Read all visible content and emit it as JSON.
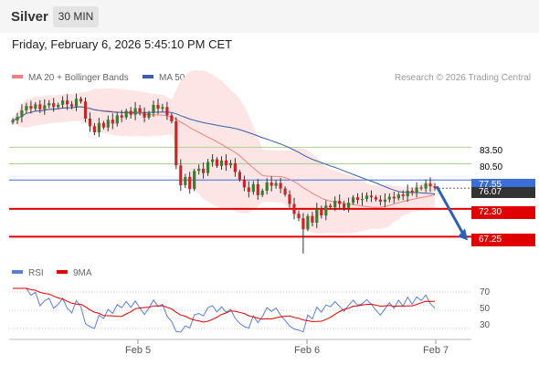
{
  "header": {
    "symbol": "Silver",
    "timeframe": "30 MIN"
  },
  "datetime": "Friday, February 6, 2026 5:45:10 PM CET",
  "legend": {
    "main": [
      {
        "label": "MA 20 + Bollinger Bands",
        "color": "#f08080"
      },
      {
        "label": "MA 50",
        "color": "#3a5fa8"
      }
    ],
    "rsi": [
      {
        "label": "RSI",
        "color": "#5b7fd6"
      },
      {
        "label": "9MA",
        "color": "#e00000"
      }
    ]
  },
  "copyright": "Research © 2026 Trading Central",
  "chart_data": [
    {
      "type": "candlestick",
      "title": "",
      "ylim": [
        63.5,
        94.5
      ],
      "grid": false,
      "legend_position": "top-left",
      "resistance_levels": [
        {
          "value": 83.5,
          "label": "83.50",
          "color": "#7cb342"
        },
        {
          "value": 80.5,
          "label": "80.50",
          "color": "#7cb342"
        }
      ],
      "pivot": {
        "value": 77.55,
        "label": "77.55",
        "color": "#3b6fd8"
      },
      "support_levels": [
        {
          "value": 72.3,
          "label": "72.30",
          "color": "#e00000"
        },
        {
          "value": 67.25,
          "label": "67.25",
          "color": "#e00000"
        }
      ],
      "last_price": {
        "value": 76.07,
        "label": "76.07"
      },
      "forecast_arrow": {
        "from": 76.4,
        "to": 67.25,
        "color": "#2f5fb3"
      },
      "x_labels": [
        "Feb 5",
        "Feb 6",
        "Feb 7"
      ],
      "price_path": [
        88.4,
        89.0,
        90.2,
        91.0,
        90.5,
        91.3,
        90.4,
        91.1,
        91.5,
        90.8,
        91.2,
        92.0,
        91.3,
        90.9,
        92.3,
        91.8,
        88.7,
        87.3,
        86.2,
        87.9,
        87.1,
        88.5,
        87.8,
        89.3,
        88.9,
        90.1,
        89.4,
        90.6,
        89.8,
        88.9,
        89.7,
        91.2,
        90.5,
        90.8,
        89.3,
        88.2,
        80.2,
        76.6,
        78.1,
        75.9,
        79.2,
        79.6,
        78.8,
        80.8,
        81.3,
        80.1,
        81.1,
        80.2,
        80.6,
        79.0,
        77.6,
        76.2,
        75.4,
        76.8,
        74.8,
        75.6,
        77.1,
        76.5,
        77.0,
        76.0,
        74.9,
        73.2,
        71.4,
        70.6,
        68.6,
        71.0,
        69.8,
        72.3,
        71.1,
        72.9,
        72.6,
        73.8,
        73.2,
        72.5,
        73.4,
        74.4,
        73.9,
        74.1,
        74.7,
        74.4,
        74.0,
        73.6,
        74.0,
        74.5,
        74.2,
        74.9,
        74.6,
        75.6,
        75.2,
        76.2,
        76.0,
        76.9,
        76.4,
        76.1
      ]
    },
    {
      "type": "line",
      "title": "RSI",
      "ylim": [
        20,
        78
      ],
      "levels": [
        70,
        50,
        30
      ],
      "grid_lines_dotted": true
    }
  ]
}
